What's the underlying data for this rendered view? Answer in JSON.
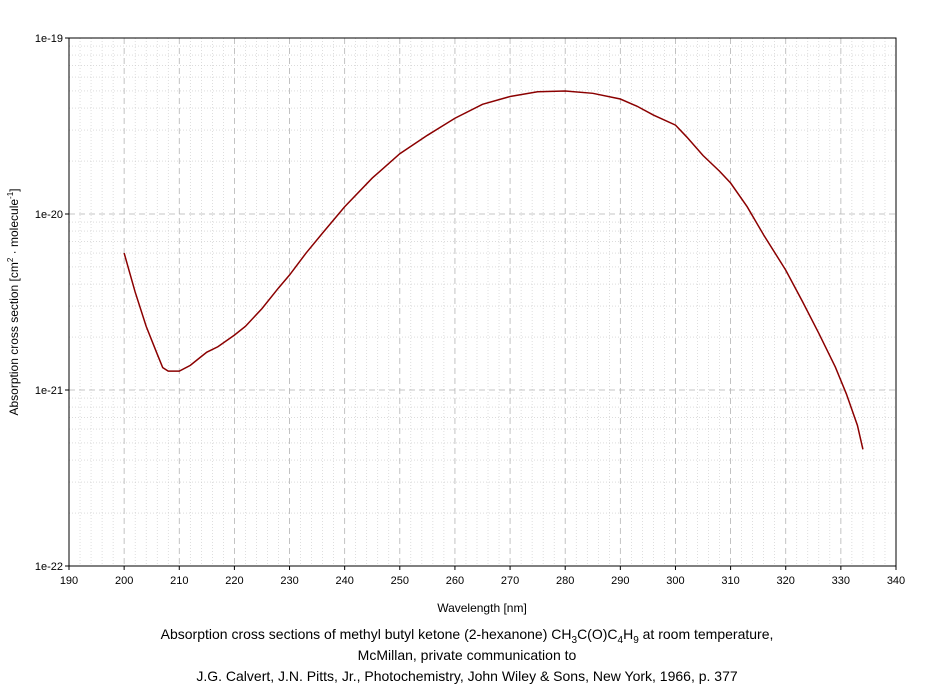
{
  "chart_data": {
    "type": "line",
    "xlabel": "Wavelength [nm]",
    "ylabel_parts": {
      "a": "Absorption cross section [cm",
      "sup1": "2",
      "b": " · molecule",
      "sup2": "-1",
      "c": "]"
    },
    "xlim": [
      190,
      340
    ],
    "ylim": [
      1e-22,
      1e-19
    ],
    "yscale": "log",
    "x_ticks": [
      "190",
      "200",
      "210",
      "220",
      "230",
      "240",
      "250",
      "260",
      "270",
      "280",
      "290",
      "300",
      "310",
      "320",
      "330",
      "340"
    ],
    "y_ticks": [
      "1e-22",
      "1e-21",
      "1e-20",
      "1e-19"
    ],
    "grid": true,
    "series": [
      {
        "color": "#8b0000",
        "x": [
          200,
          202,
          204,
          206,
          207,
          208,
          210,
          212,
          214,
          215,
          217,
          220,
          222,
          225,
          228,
          230,
          233,
          236,
          240,
          245,
          250,
          255,
          260,
          265,
          270,
          275,
          280,
          285,
          290,
          293,
          296,
          300,
          302,
          305,
          308,
          310,
          313,
          316,
          320,
          323,
          326,
          329,
          331,
          333,
          334
        ],
        "y": [
          6e-21,
          3.6e-21,
          2.3e-21,
          1.6e-21,
          1.34e-21,
          1.28e-21,
          1.28e-21,
          1.38e-21,
          1.55e-21,
          1.64e-21,
          1.76e-21,
          2.05e-21,
          2.3e-21,
          2.9e-21,
          3.8e-21,
          4.5e-21,
          6e-21,
          7.8e-21,
          1.1e-20,
          1.6e-20,
          2.2e-20,
          2.8e-20,
          3.5e-20,
          4.2e-20,
          4.65e-20,
          4.95e-20,
          5e-20,
          4.85e-20,
          4.5e-20,
          4.1e-20,
          3.65e-20,
          3.2e-20,
          2.75e-20,
          2.15e-20,
          1.75e-20,
          1.5e-20,
          1.1e-20,
          7.6e-21,
          4.8e-21,
          3.2e-21,
          2.1e-21,
          1.35e-21,
          9.5e-22,
          6.3e-22,
          4.6e-22
        ]
      }
    ]
  },
  "caption": {
    "line1_prefix": "Absorption cross sections of methyl butyl ketone (2-hexanone) CH",
    "s1": "3",
    "mid1": "C(O)C",
    "s2": "4",
    "mid2": "H",
    "s3": "9",
    "line1_suffix": " at room temperature,",
    "line2": "McMillan, private communication to",
    "line3": "J.G. Calvert, J.N. Pitts, Jr., Photochemistry, John Wiley & Sons, New York, 1966, p. 377"
  }
}
